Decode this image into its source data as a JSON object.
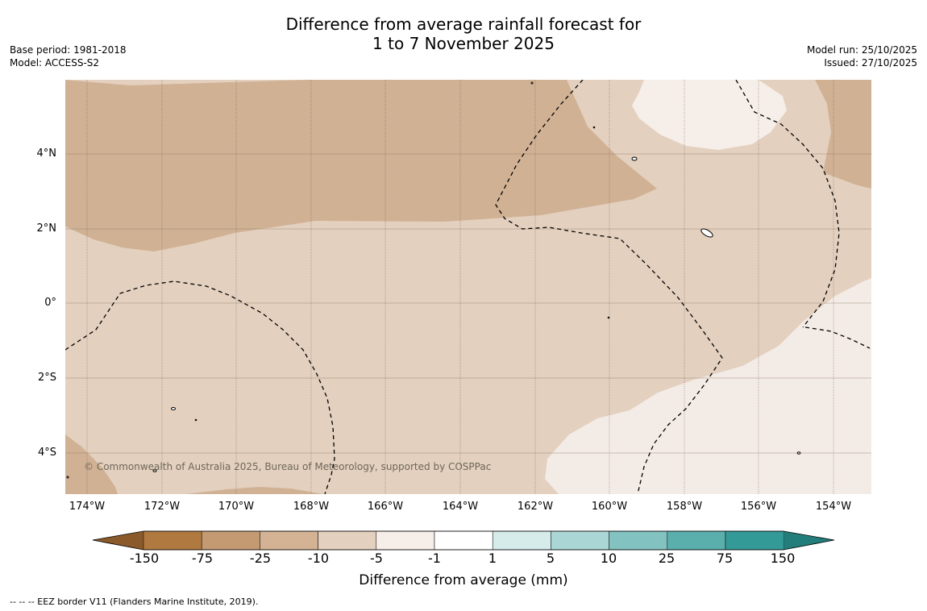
{
  "title": {
    "line1": "Difference from average rainfall forecast for",
    "line2": "1 to 7 November 2025"
  },
  "meta_left": {
    "base_period": "Base period: 1981-2018",
    "model": "Model: ACCESS-S2"
  },
  "meta_right": {
    "model_run": "Model run: 25/10/2025",
    "issued": "Issued: 27/10/2025"
  },
  "map": {
    "lat_labels": [
      "4°N",
      "2°N",
      "0°",
      "2°S",
      "4°S"
    ],
    "lon_labels": [
      "174°W",
      "172°W",
      "170°W",
      "168°W",
      "166°W",
      "164°W",
      "162°W",
      "160°W",
      "158°W",
      "156°W",
      "154°W"
    ],
    "copyright": "© Commonwealth of Australia 2025, Bureau of Meteorology, supported by COSPPac",
    "colors": {
      "land_fill": "#ffffff",
      "grid": "#7a6a58",
      "eez": "#000000"
    }
  },
  "colorbar": {
    "ticks": [
      "-150",
      "-75",
      "-25",
      "-10",
      "-5",
      "-1",
      "1",
      "5",
      "10",
      "25",
      "75",
      "150"
    ],
    "colors": [
      "#8a5a2b",
      "#b0793f",
      "#c49a72",
      "#d3b394",
      "#e3d0bf",
      "#f6eee8",
      "#ffffff",
      "#d6ecea",
      "#aad7d6",
      "#82c2c0",
      "#5aaeac",
      "#349a97",
      "#237d7a"
    ],
    "label": "Difference from average (mm)"
  },
  "footnote": "--  --  -- EEZ border V11 (Flanders Marine Institute, 2019)."
}
